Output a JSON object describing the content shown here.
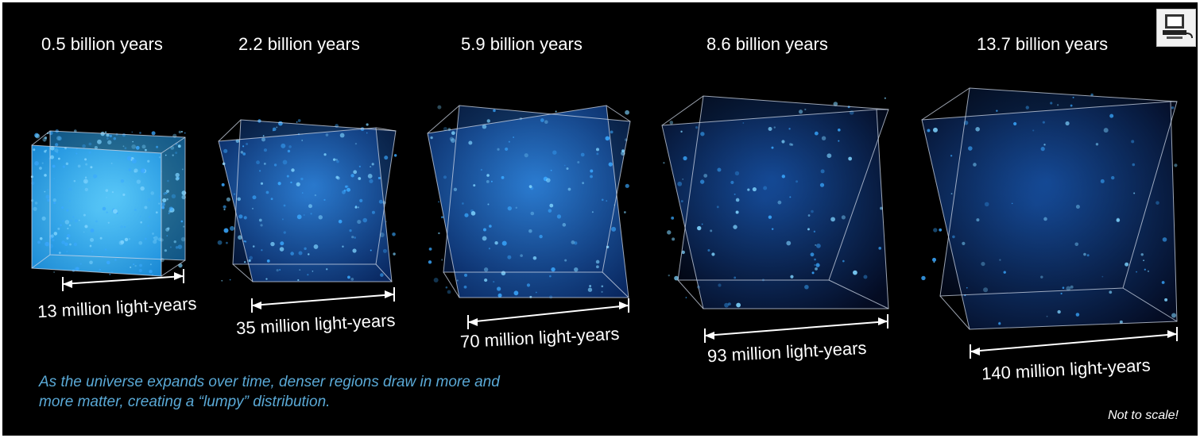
{
  "epochs": [
    {
      "age": "0.5 billion years",
      "size": "13 million light-years"
    },
    {
      "age": "2.2 billion years",
      "size": "35 million light-years"
    },
    {
      "age": "5.9 billion years",
      "size": "70 million light-years"
    },
    {
      "age": "8.6 billion years",
      "size": "93 million light-years"
    },
    {
      "age": "13.7 billion years",
      "size": "140 million light-years"
    }
  ],
  "caption": "As the universe expands over time, denser regions draw in more and more matter, creating a “lumpy” distribution.",
  "note": "Not to scale!",
  "icons": {
    "corner": "computer-icon"
  },
  "colors": {
    "background": "#000000",
    "matter": "#3aa8ff",
    "caption": "#5aa9d6"
  }
}
